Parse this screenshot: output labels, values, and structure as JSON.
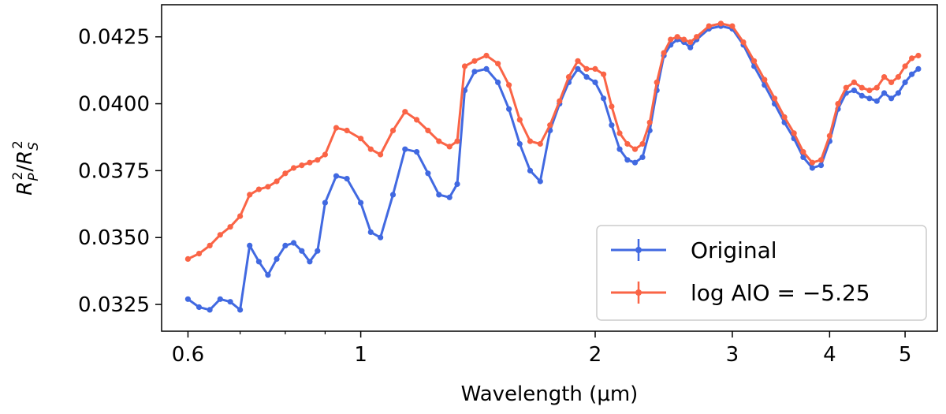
{
  "chart_data": {
    "type": "line",
    "title": "",
    "xlabel": "Wavelength (μm)",
    "ylabel": "R_P^2/R_S^2",
    "xscale": "log",
    "xlim": [
      0.555,
      5.5
    ],
    "ylim": [
      0.0315,
      0.0437
    ],
    "xticks": [
      {
        "value": 0.6,
        "label": "0.6"
      },
      {
        "value": 1,
        "label": "1"
      },
      {
        "value": 2,
        "label": "2"
      },
      {
        "value": 3,
        "label": "3"
      },
      {
        "value": 4,
        "label": "4"
      },
      {
        "value": 5,
        "label": "5"
      }
    ],
    "yticks": [
      {
        "value": 0.0325,
        "label": "0.0325"
      },
      {
        "value": 0.035,
        "label": "0.0350"
      },
      {
        "value": 0.0375,
        "label": "0.0375"
      },
      {
        "value": 0.04,
        "label": "0.0400"
      },
      {
        "value": 0.0425,
        "label": "0.0425"
      }
    ],
    "legend_position": "lower-right",
    "series": [
      {
        "name": "Original",
        "color": "#4169e1",
        "x": [
          0.6,
          0.62,
          0.64,
          0.66,
          0.68,
          0.7,
          0.72,
          0.74,
          0.76,
          0.78,
          0.8,
          0.82,
          0.84,
          0.86,
          0.88,
          0.9,
          0.93,
          0.96,
          1.0,
          1.03,
          1.06,
          1.1,
          1.14,
          1.18,
          1.22,
          1.26,
          1.3,
          1.33,
          1.36,
          1.4,
          1.45,
          1.5,
          1.55,
          1.6,
          1.65,
          1.7,
          1.75,
          1.8,
          1.85,
          1.9,
          1.95,
          2.0,
          2.05,
          2.1,
          2.15,
          2.2,
          2.25,
          2.3,
          2.35,
          2.4,
          2.45,
          2.5,
          2.55,
          2.6,
          2.65,
          2.7,
          2.8,
          2.9,
          3.0,
          3.1,
          3.2,
          3.3,
          3.4,
          3.5,
          3.6,
          3.7,
          3.8,
          3.9,
          4.0,
          4.1,
          4.2,
          4.3,
          4.4,
          4.5,
          4.6,
          4.7,
          4.8,
          4.9,
          5.0,
          5.1,
          5.2
        ],
        "y": [
          0.0327,
          0.0324,
          0.0323,
          0.0327,
          0.0326,
          0.0323,
          0.0347,
          0.0341,
          0.0336,
          0.0342,
          0.0347,
          0.0348,
          0.0345,
          0.0341,
          0.0345,
          0.0363,
          0.0373,
          0.0372,
          0.0363,
          0.0352,
          0.035,
          0.0366,
          0.0383,
          0.0382,
          0.0374,
          0.0366,
          0.0365,
          0.037,
          0.0405,
          0.0412,
          0.0413,
          0.0408,
          0.0398,
          0.0385,
          0.0375,
          0.0371,
          0.039,
          0.04,
          0.0408,
          0.0413,
          0.041,
          0.0408,
          0.0402,
          0.0392,
          0.0383,
          0.0379,
          0.0378,
          0.038,
          0.039,
          0.0405,
          0.0418,
          0.0422,
          0.0424,
          0.0423,
          0.0421,
          0.0424,
          0.0428,
          0.0429,
          0.0428,
          0.0422,
          0.0414,
          0.0407,
          0.04,
          0.0393,
          0.0387,
          0.038,
          0.0376,
          0.0377,
          0.0386,
          0.0398,
          0.0404,
          0.0405,
          0.0403,
          0.0402,
          0.0401,
          0.0404,
          0.0402,
          0.0404,
          0.0408,
          0.0411,
          0.0413
        ]
      },
      {
        "name": "log AlO = −5.25",
        "color": "#fa6446",
        "x": [
          0.6,
          0.62,
          0.64,
          0.66,
          0.68,
          0.7,
          0.72,
          0.74,
          0.76,
          0.78,
          0.8,
          0.82,
          0.84,
          0.86,
          0.88,
          0.9,
          0.93,
          0.96,
          1.0,
          1.03,
          1.06,
          1.1,
          1.14,
          1.18,
          1.22,
          1.26,
          1.3,
          1.33,
          1.36,
          1.4,
          1.45,
          1.5,
          1.55,
          1.6,
          1.65,
          1.7,
          1.75,
          1.8,
          1.85,
          1.9,
          1.95,
          2.0,
          2.05,
          2.1,
          2.15,
          2.2,
          2.25,
          2.3,
          2.35,
          2.4,
          2.45,
          2.5,
          2.55,
          2.6,
          2.65,
          2.7,
          2.8,
          2.9,
          3.0,
          3.1,
          3.2,
          3.3,
          3.4,
          3.5,
          3.6,
          3.7,
          3.8,
          3.9,
          4.0,
          4.1,
          4.2,
          4.3,
          4.4,
          4.5,
          4.6,
          4.7,
          4.8,
          4.9,
          5.0,
          5.1,
          5.2
        ],
        "y": [
          0.0342,
          0.0344,
          0.0347,
          0.0351,
          0.0354,
          0.0358,
          0.0366,
          0.0368,
          0.0369,
          0.0371,
          0.0374,
          0.0376,
          0.0377,
          0.0378,
          0.0379,
          0.0381,
          0.0391,
          0.039,
          0.0387,
          0.0383,
          0.0381,
          0.039,
          0.0397,
          0.0394,
          0.039,
          0.0386,
          0.0384,
          0.0386,
          0.0414,
          0.0416,
          0.0418,
          0.0415,
          0.0407,
          0.0394,
          0.0386,
          0.0385,
          0.0392,
          0.0401,
          0.041,
          0.0416,
          0.0413,
          0.0413,
          0.0411,
          0.0399,
          0.0389,
          0.0385,
          0.0383,
          0.0385,
          0.0393,
          0.0408,
          0.0419,
          0.0424,
          0.0425,
          0.0424,
          0.0423,
          0.0425,
          0.0429,
          0.043,
          0.0429,
          0.0423,
          0.0416,
          0.0409,
          0.0402,
          0.0395,
          0.0389,
          0.0382,
          0.0378,
          0.0379,
          0.0388,
          0.04,
          0.0406,
          0.0408,
          0.0406,
          0.0405,
          0.0406,
          0.041,
          0.0408,
          0.041,
          0.0414,
          0.0417,
          0.0418
        ]
      }
    ],
    "legend": [
      {
        "label": "Original",
        "color": "#4169e1"
      },
      {
        "label": "log AlO = −5.25",
        "color": "#fa6446"
      }
    ]
  }
}
